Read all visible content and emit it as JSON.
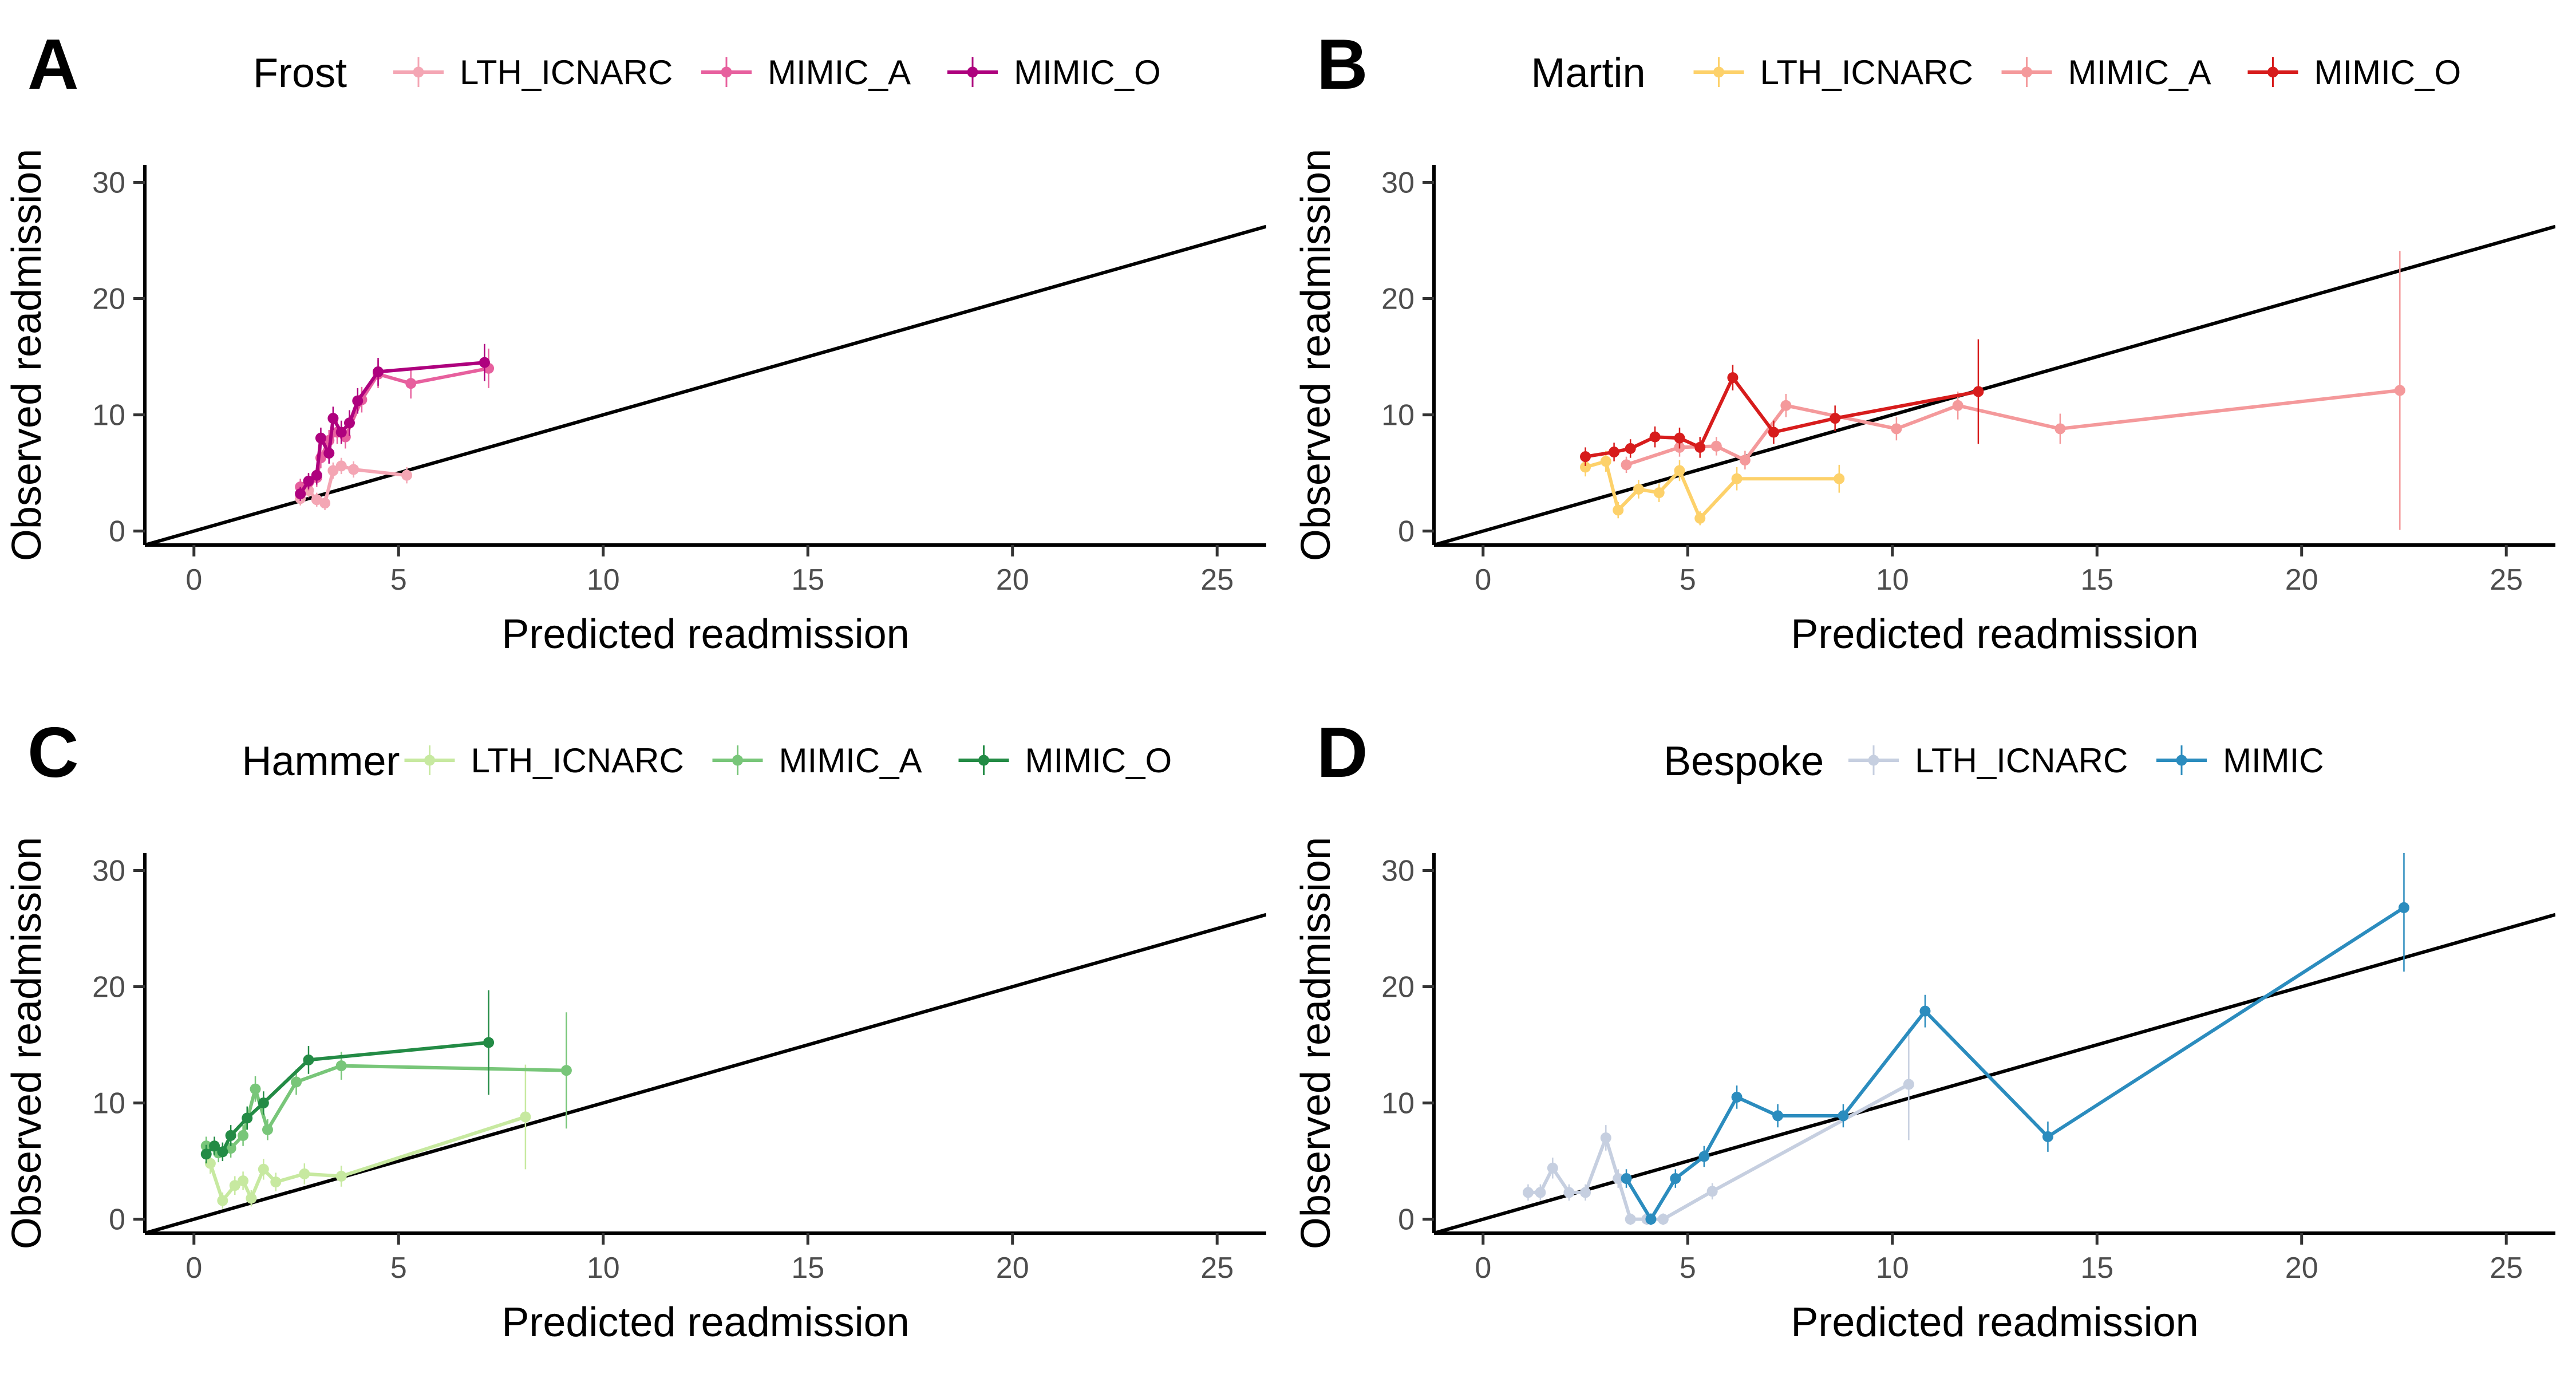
{
  "chart_data": [
    {
      "type": "line",
      "panel_tag": "A",
      "legend_title": "Frost",
      "legend_placement": "top",
      "xlabel": "Predicted readmission",
      "ylabel": "Observed readmission",
      "xlim": [
        -1.2,
        26.2
      ],
      "ylim": [
        -1.2,
        31.5
      ],
      "x_ticks": [
        0,
        5,
        10,
        15,
        20,
        25
      ],
      "y_ticks": [
        0,
        10,
        20,
        30
      ],
      "grid": false,
      "reference_line": "identity",
      "series": [
        {
          "name": "LTH_ICNARC",
          "color": "#f4a6b4",
          "x": [
            2.6,
            2.8,
            3.0,
            3.2,
            3.4,
            3.6,
            3.9,
            5.2
          ],
          "y": [
            2.8,
            3.5,
            2.7,
            2.4,
            5.2,
            5.6,
            5.3,
            4.8
          ],
          "err": [
            0.6,
            0.6,
            0.6,
            0.6,
            0.7,
            0.7,
            0.7,
            0.7
          ]
        },
        {
          "name": "MIMIC_A",
          "color": "#e7609e",
          "x": [
            2.6,
            2.8,
            3.0,
            3.1,
            3.3,
            3.5,
            3.7,
            4.1,
            4.5,
            5.3,
            7.2
          ],
          "y": [
            3.8,
            4.2,
            4.6,
            6.3,
            7.8,
            8.5,
            8.1,
            11.3,
            13.5,
            12.7,
            14.0
          ],
          "err": [
            0.7,
            0.7,
            0.8,
            0.9,
            0.9,
            1.0,
            1.0,
            1.1,
            1.2,
            1.3,
            1.7
          ]
        },
        {
          "name": "MIMIC_O",
          "color": "#ae017e",
          "x": [
            2.6,
            2.8,
            3.0,
            3.1,
            3.3,
            3.4,
            3.6,
            3.8,
            4.0,
            4.5,
            7.1
          ],
          "y": [
            3.2,
            4.3,
            4.8,
            8.0,
            6.7,
            9.7,
            8.5,
            9.3,
            11.2,
            13.7,
            14.5
          ],
          "err": [
            0.6,
            0.7,
            0.8,
            0.9,
            0.9,
            1.0,
            1.0,
            1.1,
            1.1,
            1.2,
            1.6
          ]
        }
      ]
    },
    {
      "type": "line",
      "panel_tag": "B",
      "legend_title": "Martin",
      "legend_placement": "top",
      "xlabel": "Predicted readmission",
      "ylabel": "Observed readmission",
      "xlim": [
        -1.2,
        26.2
      ],
      "ylim": [
        -1.2,
        31.5
      ],
      "x_ticks": [
        0,
        5,
        10,
        15,
        20,
        25
      ],
      "y_ticks": [
        0,
        10,
        20,
        30
      ],
      "grid": false,
      "reference_line": "identity",
      "series": [
        {
          "name": "LTH_ICNARC",
          "color": "#fdd16a",
          "x": [
            2.5,
            3.0,
            3.3,
            3.8,
            4.3,
            4.8,
            5.3,
            6.2,
            8.7
          ],
          "y": [
            5.5,
            6.0,
            1.8,
            3.6,
            3.3,
            5.2,
            1.1,
            4.5,
            4.5
          ],
          "err": [
            0.8,
            0.9,
            0.7,
            0.8,
            0.8,
            0.9,
            0.6,
            1.0,
            1.2
          ]
        },
        {
          "name": "MIMIC_A",
          "color": "#f4999b",
          "x": [
            3.5,
            4.8,
            5.7,
            6.4,
            7.4,
            10.1,
            11.6,
            14.1,
            22.4
          ],
          "y": [
            5.7,
            7.2,
            7.3,
            6.1,
            10.8,
            8.8,
            10.8,
            8.8,
            12.1
          ],
          "err": [
            0.7,
            0.8,
            0.8,
            0.8,
            1.0,
            1.0,
            1.2,
            1.3,
            12.0
          ]
        },
        {
          "name": "MIMIC_O",
          "color": "#d71c1c",
          "x": [
            2.5,
            3.2,
            3.6,
            4.2,
            4.8,
            5.3,
            6.1,
            7.1,
            8.6,
            12.1
          ],
          "y": [
            6.4,
            6.8,
            7.1,
            8.1,
            8.0,
            7.2,
            13.2,
            8.5,
            9.7,
            12.0
          ],
          "err": [
            0.8,
            0.8,
            0.8,
            0.9,
            0.9,
            0.9,
            1.1,
            1.0,
            1.1,
            4.5
          ]
        }
      ]
    },
    {
      "type": "line",
      "panel_tag": "C",
      "legend_title": "Hammer",
      "legend_placement": "top",
      "xlabel": "Predicted readmission",
      "ylabel": "Observed readmission",
      "xlim": [
        -1.2,
        26.2
      ],
      "ylim": [
        -1.2,
        31.5
      ],
      "x_ticks": [
        0,
        5,
        10,
        15,
        20,
        25
      ],
      "y_ticks": [
        0,
        10,
        20,
        30
      ],
      "grid": false,
      "reference_line": "identity",
      "series": [
        {
          "name": "LTH_ICNARC",
          "color": "#c7e9a0",
          "x": [
            0.4,
            0.7,
            1.0,
            1.2,
            1.4,
            1.7,
            2.0,
            2.7,
            3.6,
            8.1
          ],
          "y": [
            4.8,
            1.6,
            2.9,
            3.3,
            1.8,
            4.3,
            3.2,
            3.9,
            3.7,
            8.8
          ],
          "err": [
            0.9,
            0.7,
            0.8,
            0.8,
            0.7,
            0.9,
            0.8,
            0.9,
            0.9,
            4.5
          ]
        },
        {
          "name": "MIMIC_A",
          "color": "#78c679",
          "x": [
            0.3,
            0.6,
            0.9,
            1.2,
            1.5,
            1.8,
            2.5,
            3.6,
            9.1
          ],
          "y": [
            6.3,
            5.7,
            6.1,
            7.2,
            11.2,
            7.7,
            11.8,
            13.2,
            12.8
          ],
          "err": [
            0.8,
            0.8,
            0.8,
            0.9,
            1.1,
            0.9,
            1.1,
            1.2,
            5.0
          ]
        },
        {
          "name": "MIMIC_O",
          "color": "#238b45",
          "x": [
            0.3,
            0.5,
            0.7,
            0.9,
            1.3,
            1.7,
            2.8,
            7.2
          ],
          "y": [
            5.6,
            6.3,
            5.8,
            7.2,
            8.7,
            10.0,
            13.7,
            15.2
          ],
          "err": [
            0.8,
            0.8,
            0.8,
            0.9,
            1.0,
            1.0,
            1.2,
            4.5
          ]
        }
      ]
    },
    {
      "type": "line",
      "panel_tag": "D",
      "legend_title": "Bespoke",
      "legend_placement": "top",
      "xlabel": "Predicted readmission",
      "ylabel": "Observed readmission",
      "xlim": [
        -1.2,
        26.2
      ],
      "ylim": [
        -1.2,
        31.5
      ],
      "x_ticks": [
        0,
        5,
        10,
        15,
        20,
        25
      ],
      "y_ticks": [
        0,
        10,
        20,
        30
      ],
      "grid": false,
      "reference_line": "identity",
      "series": [
        {
          "name": "LTH_ICNARC",
          "color": "#c6cfe0",
          "x": [
            1.1,
            1.4,
            1.7,
            2.1,
            2.5,
            3.0,
            3.3,
            3.6,
            4.0,
            4.4,
            5.6,
            10.4
          ],
          "y": [
            2.3,
            2.3,
            4.4,
            2.3,
            2.3,
            7.0,
            3.5,
            0.0,
            0.0,
            0.0,
            2.4,
            11.6
          ],
          "err": [
            0.7,
            0.7,
            0.9,
            0.7,
            0.7,
            1.1,
            0.8,
            0.5,
            0.5,
            0.5,
            0.7,
            4.8
          ]
        },
        {
          "name": "MIMIC",
          "color": "#2b8cbe",
          "x": [
            3.5,
            4.1,
            4.7,
            5.4,
            6.2,
            7.2,
            8.8,
            10.8,
            13.8,
            22.5
          ],
          "y": [
            3.5,
            0.0,
            3.5,
            5.4,
            10.5,
            8.9,
            8.9,
            17.9,
            7.1,
            26.8
          ],
          "err": [
            0.8,
            0.5,
            0.8,
            0.9,
            1.0,
            1.0,
            1.0,
            1.4,
            1.3,
            5.5
          ]
        }
      ]
    }
  ]
}
